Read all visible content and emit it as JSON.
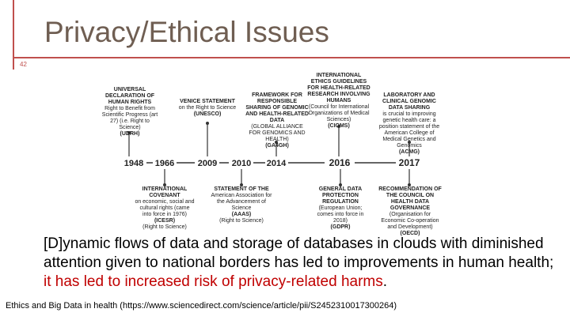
{
  "slide": {
    "title": "Privacy/Ethical Issues",
    "page_number": "42",
    "body_part1": "[D]ynamic flows of data and storage of databases in clouds with diminished attention given to national borders has led to improvements in human health; ",
    "body_part2": "it has led to increased risk of privacy-related harms",
    "body_part3": ".",
    "citation": "Ethics and Big Data in health (https://www.sciencedirect.com/science/article/pii/S2452310017300264)",
    "accent_color": "#c0504d",
    "title_color": "#6f5e52",
    "highlight_color": "#c00000"
  },
  "timeline": {
    "years": [
      "1948",
      "1966",
      "2009",
      "2010",
      "2014",
      "2016",
      "2017"
    ],
    "top_items": [
      {
        "heading": "UNIVERSAL DECLARATION OF HUMAN RIGHTS",
        "desc": "Right to Benefit from Scientific Progress (art 27) (i.e. Right to Science)",
        "acronym": "(UDRH)"
      },
      {
        "heading": "VENICE STATEMENT",
        "desc": "on the Right to Science",
        "acronym": "(UNESCO)"
      },
      {
        "heading": "FRAMEWORK FOR RESPONSIBLE SHARING OF GENOMIC AND HEALTH-RELATED DATA",
        "desc": "(GLOBAL ALLIANCE FOR GENOMICS AND HEALTH)",
        "acronym": "(GA4GH)"
      },
      {
        "heading": "INTERNATIONAL ETHICS GUIDELINES FOR HEALTH-RELATED RESEARCH INVOLVING HUMANS",
        "desc": "(Council for International Organizations of Medical Sciences)",
        "acronym": "(CIOMS)"
      },
      {
        "heading": "LABORATORY AND CLINICAL GENOMIC DATA SHARING",
        "desc": "is crucial to improving genetic health care: a position statement of the American College of Medical Genetics and Genomics",
        "acronym": "(ACMG)"
      }
    ],
    "bottom_items": [
      {
        "heading": "INTERNATIONAL COVENANT",
        "desc": "on economic, social and cultural rights (came into force in 1976)",
        "acronym": "(ICESR)",
        "extra": "(Right to Science)"
      },
      {
        "heading": "STATEMENT OF THE",
        "desc": "American Association for the Advancement of Science",
        "acronym": "(AAAS)",
        "extra": "(Right to Science)"
      },
      {
        "heading": "GENERAL DATA PROTECTION REGULATION",
        "desc": "(European Union; comes into force in 2018)",
        "acronym": "(GDPR)",
        "extra": ""
      },
      {
        "heading": "RECOMMENDATION OF THE COUNCIL ON HEALTH DATA GOVERNANCE",
        "desc": "(Organisation for Economic Co-operation and Development)",
        "acronym": "(OECD)",
        "extra": ""
      }
    ]
  }
}
